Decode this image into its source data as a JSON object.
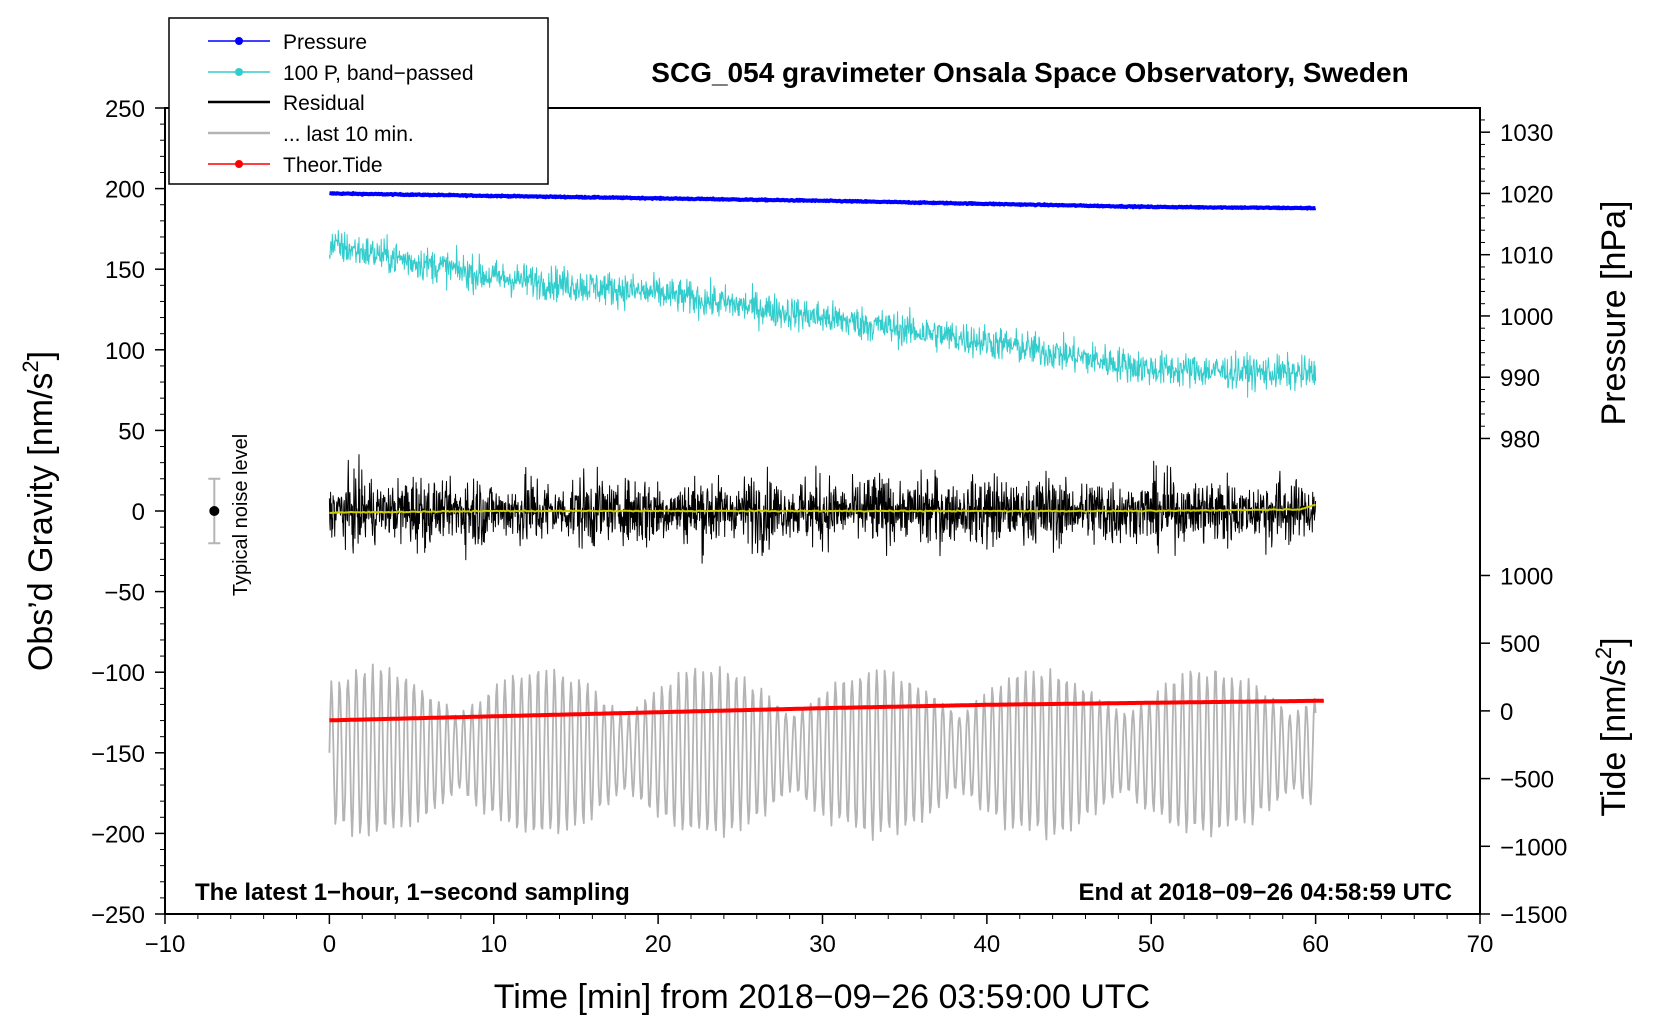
{
  "chart_data": {
    "type": "line",
    "title": "SCG_054 gravimeter Onsala Space Observatory, Sweden",
    "xlabel": "Time [min] from 2018−09−26 03:59:00 UTC",
    "ylabel": "Obs’d Gravity [nm/s",
    "ylabel_sup": "2",
    "ylabel_close": "]",
    "y2label": "Pressure [hPa]",
    "y3label": "Tide [nm/s",
    "y3label_sup": "2",
    "y3label_close": "]",
    "xlim": [
      -10,
      70
    ],
    "ylim": [
      -250,
      250
    ],
    "pressure_axis": {
      "data_min": 980,
      "data_max": 1030,
      "maps_to_gravity": [
        45,
        235
      ]
    },
    "tide_axis": {
      "range": [
        -1500,
        1000
      ],
      "maps_to_gravity": [
        -250,
        -40
      ]
    },
    "x_ticks": [
      -10,
      0,
      10,
      20,
      30,
      40,
      50,
      60,
      70
    ],
    "x_tick_labels": [
      "−10",
      "0",
      "10",
      "20",
      "30",
      "40",
      "50",
      "60",
      "70"
    ],
    "y_ticks": [
      -250,
      -200,
      -150,
      -100,
      -50,
      0,
      50,
      100,
      150,
      200,
      250
    ],
    "y_tick_labels": [
      "−250",
      "−200",
      "−150",
      "−100",
      "−50",
      "0",
      "50",
      "100",
      "150",
      "200",
      "250"
    ],
    "pressure_ticks": [
      980,
      990,
      1000,
      1010,
      1020,
      1030
    ],
    "pressure_tick_labels": [
      "980",
      "990",
      "1000",
      "1010",
      "1020",
      "1030"
    ],
    "tide_ticks": [
      -1500,
      -1000,
      -500,
      0,
      500,
      1000
    ],
    "tide_tick_labels": [
      "−1500",
      "−1000",
      "−500",
      "0",
      "500",
      "1000"
    ],
    "annotation_left": "The latest 1−hour, 1−second sampling",
    "annotation_right": "End at 2018−09−26 04:58:59 UTC",
    "noise_label": "Typical noise level",
    "noise_bar": {
      "x": -7,
      "center": 0,
      "low": -20,
      "high": 20
    },
    "legend": [
      {
        "label": "Pressure",
        "color": "#0000ff"
      },
      {
        "label": "100 P, band−passed",
        "color": "#33cccc"
      },
      {
        "label": "Residual",
        "color": "#000000"
      },
      {
        "label": "... last 10 min.",
        "color": "#b4b4b4"
      },
      {
        "label": "Theor.Tide",
        "color": "#ff0000"
      }
    ],
    "series": [
      {
        "name": "Pressure",
        "color": "#0000ff",
        "axis": "pressure",
        "x": [
          0,
          10,
          20,
          30,
          40,
          50,
          60
        ],
        "values": [
          1020.0,
          1019.6,
          1019.2,
          1018.8,
          1018.3,
          1017.8,
          1017.6
        ]
      },
      {
        "name": "100 P, band−passed",
        "color": "#33cccc",
        "axis": "gravity",
        "x": [
          0,
          10,
          20,
          30,
          40,
          50,
          60
        ],
        "values": [
          165,
          145,
          135,
          120,
          105,
          88,
          85
        ]
      },
      {
        "name": "Residual",
        "color": "#000000",
        "axis": "gravity",
        "x": [
          0,
          10,
          20,
          30,
          40,
          50,
          60
        ],
        "values": [
          0,
          0,
          0,
          0,
          0,
          0,
          0
        ],
        "amplitude": 45
      },
      {
        "name": "Residual smoothed",
        "color": "#cccc00",
        "axis": "gravity",
        "x": [
          0,
          10,
          20,
          30,
          40,
          50,
          59,
          60
        ],
        "values": [
          -1,
          0,
          0,
          0,
          0,
          0,
          1,
          4
        ]
      },
      {
        "name": "... last 10 min.",
        "color": "#b4b4b4",
        "axis": "gravity",
        "x": [
          0,
          60
        ],
        "values": [
          -150,
          -150
        ],
        "amplitude": 55
      },
      {
        "name": "Theor.Tide",
        "color": "#ff0000",
        "axis": "tide",
        "x": [
          0,
          10,
          20,
          30,
          40,
          50,
          60.5
        ],
        "values": [
          -70,
          -40,
          -10,
          20,
          45,
          60,
          75
        ]
      }
    ]
  }
}
